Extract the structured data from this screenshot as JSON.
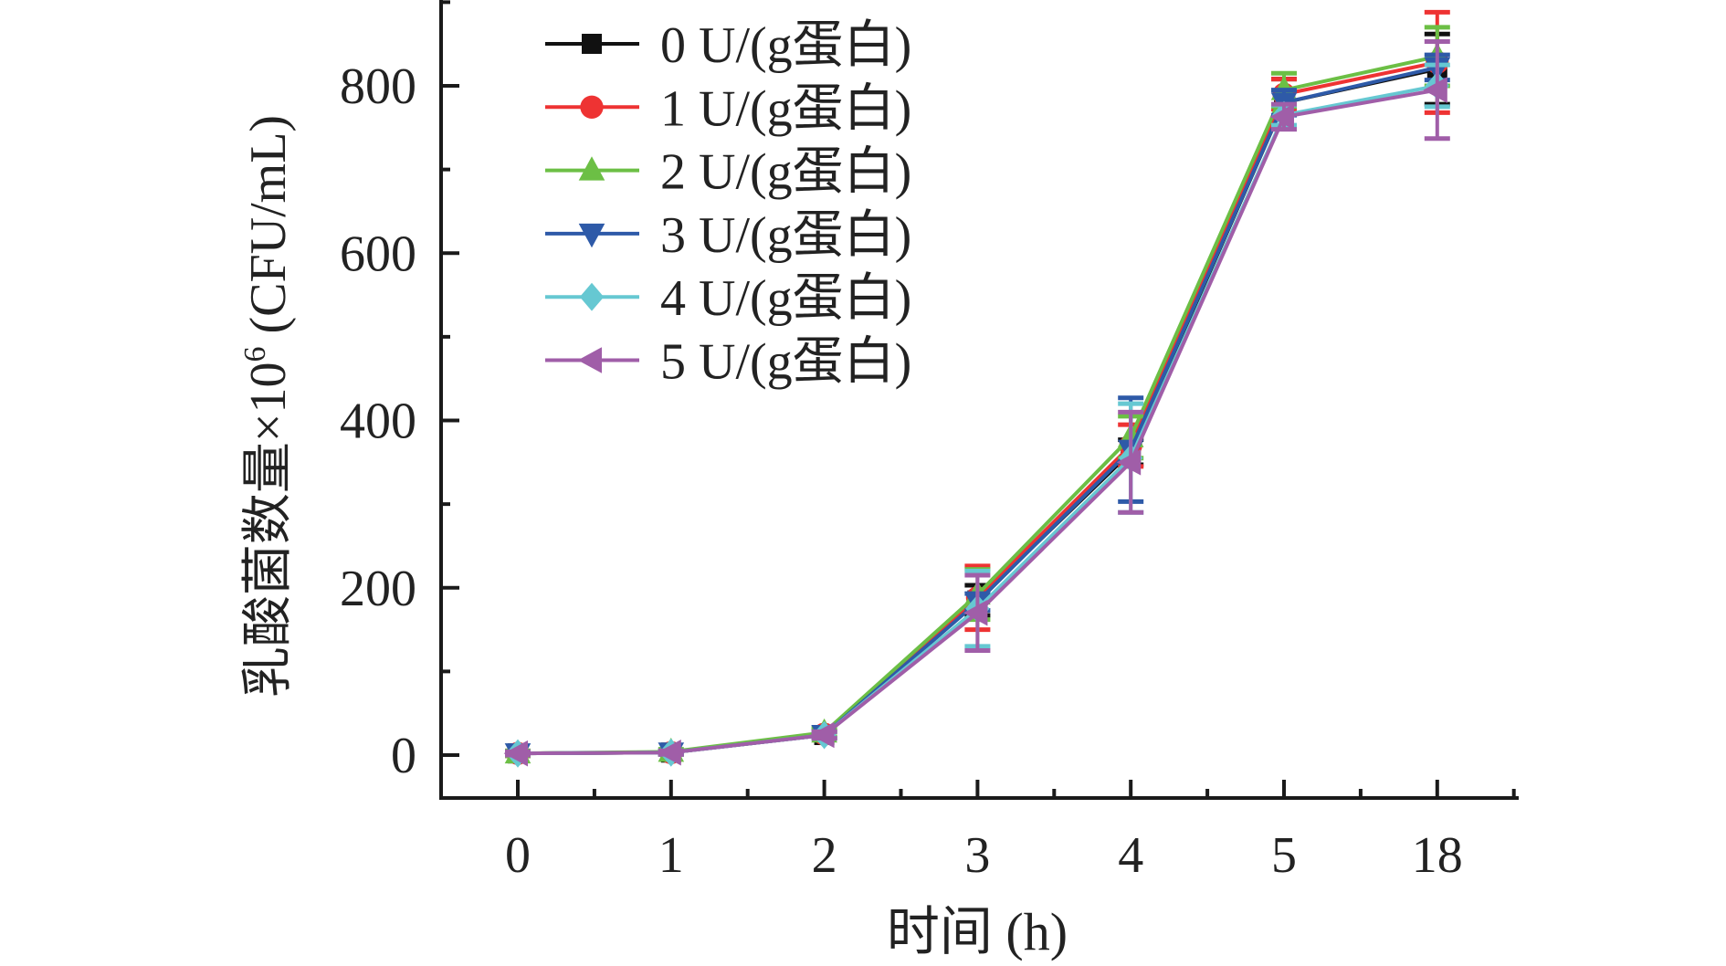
{
  "chart_data": {
    "type": "line",
    "title": "",
    "xlabel": "时间 (h)",
    "ylabel": "乳酸菌数量×10⁶ (CFU/mL)",
    "ylabel_main": "乳酸菌数量×10",
    "ylabel_sup": "6",
    "ylabel_unit": " (CFU/mL)",
    "categories": [
      "0",
      "1",
      "2",
      "3",
      "4",
      "5",
      "18"
    ],
    "ylim": [
      -50,
      900
    ],
    "yticks": [
      0,
      200,
      400,
      600,
      800
    ],
    "grid": false,
    "legend_position": "top-left",
    "series": [
      {
        "name": "0 U/(g蛋白)",
        "color": "#111111",
        "marker": "square",
        "values": [
          2,
          3,
          24,
          185,
          362,
          780,
          820
        ],
        "errors": [
          2,
          2,
          4,
          18,
          15,
          28,
          42
        ]
      },
      {
        "name": "1 U/(g蛋白)",
        "color": "#ee3333",
        "marker": "circle",
        "values": [
          2,
          3,
          25,
          188,
          370,
          790,
          828
        ],
        "errors": [
          3,
          2,
          4,
          38,
          25,
          18,
          60
        ]
      },
      {
        "name": "2 U/(g蛋白)",
        "color": "#6cbf45",
        "marker": "triangle-up",
        "values": [
          2,
          4,
          27,
          192,
          380,
          795,
          835
        ],
        "errors": [
          3,
          3,
          5,
          30,
          25,
          20,
          35
        ]
      },
      {
        "name": "3 U/(g蛋白)",
        "color": "#2e5aa8",
        "marker": "triangle-down",
        "values": [
          2,
          3,
          24,
          183,
          365,
          780,
          822
        ],
        "errors": [
          2,
          2,
          4,
          10,
          62,
          15,
          15
        ]
      },
      {
        "name": "4 U/(g蛋白)",
        "color": "#66c8d2",
        "marker": "diamond",
        "values": [
          2,
          3,
          24,
          175,
          355,
          765,
          800
        ],
        "errors": [
          2,
          2,
          4,
          45,
          65,
          12,
          25
        ]
      },
      {
        "name": "5 U/(g蛋白)",
        "color": "#a05ea8",
        "marker": "triangle-left",
        "values": [
          2,
          3,
          24,
          170,
          350,
          763,
          795
        ],
        "errors": [
          2,
          2,
          4,
          45,
          60,
          15,
          58
        ]
      }
    ]
  }
}
